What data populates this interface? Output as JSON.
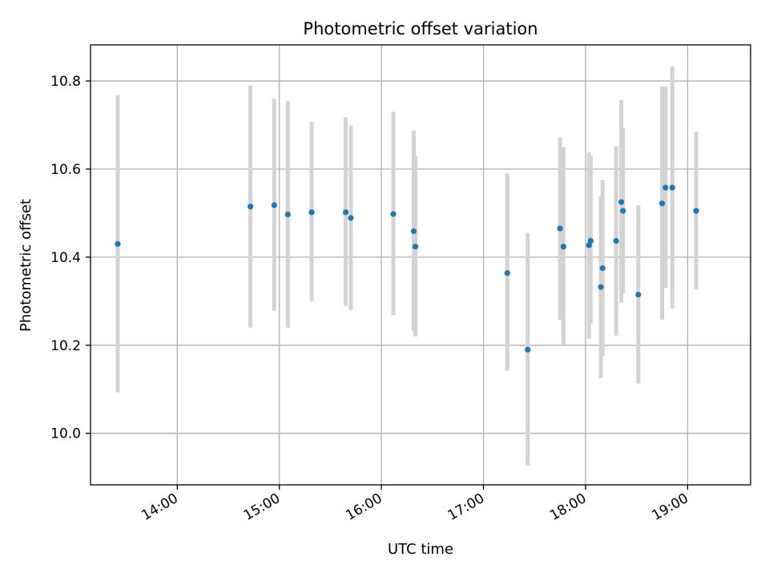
{
  "chart_data": {
    "type": "scatter",
    "title": "Photometric offset variation",
    "xlabel": "UTC time",
    "ylabel": "Photometric offset",
    "xlim": [
      "13:09",
      "19:37"
    ],
    "ylim": [
      9.883,
      10.882
    ],
    "xticks": [
      "14:00",
      "15:00",
      "16:00",
      "17:00",
      "18:00",
      "19:00"
    ],
    "yticks": [
      "10.0",
      "10.2",
      "10.4",
      "10.6",
      "10.8"
    ],
    "grid": true,
    "colors": {
      "marker": "#1f77b4",
      "errorbar": "#d3d3d3",
      "grid": "#b0b0b0"
    },
    "points": [
      {
        "t": "13:25",
        "y": 10.43,
        "lo": 10.093,
        "hi": 10.768
      },
      {
        "t": "14:43",
        "y": 10.515,
        "lo": 10.24,
        "hi": 10.79
      },
      {
        "t": "14:57",
        "y": 10.518,
        "lo": 10.278,
        "hi": 10.76
      },
      {
        "t": "15:05",
        "y": 10.497,
        "lo": 10.24,
        "hi": 10.755
      },
      {
        "t": "15:19",
        "y": 10.502,
        "lo": 10.3,
        "hi": 10.707
      },
      {
        "t": "15:39",
        "y": 10.502,
        "lo": 10.29,
        "hi": 10.718
      },
      {
        "t": "15:42",
        "y": 10.489,
        "lo": 10.28,
        "hi": 10.699
      },
      {
        "t": "16:07",
        "y": 10.498,
        "lo": 10.268,
        "hi": 10.73
      },
      {
        "t": "16:19",
        "y": 10.459,
        "lo": 10.232,
        "hi": 10.687
      },
      {
        "t": "16:20",
        "y": 10.424,
        "lo": 10.22,
        "hi": 10.63
      },
      {
        "t": "17:14",
        "y": 10.364,
        "lo": 10.142,
        "hi": 10.59
      },
      {
        "t": "17:26",
        "y": 10.19,
        "lo": 9.927,
        "hi": 10.455
      },
      {
        "t": "17:45",
        "y": 10.465,
        "lo": 10.258,
        "hi": 10.672
      },
      {
        "t": "17:47",
        "y": 10.424,
        "lo": 10.2,
        "hi": 10.65
      },
      {
        "t": "18:02",
        "y": 10.427,
        "lo": 10.215,
        "hi": 10.638
      },
      {
        "t": "18:03",
        "y": 10.437,
        "lo": 10.25,
        "hi": 10.63
      },
      {
        "t": "18:09",
        "y": 10.332,
        "lo": 10.125,
        "hi": 10.538
      },
      {
        "t": "18:10",
        "y": 10.375,
        "lo": 10.175,
        "hi": 10.575
      },
      {
        "t": "18:18",
        "y": 10.437,
        "lo": 10.222,
        "hi": 10.652
      },
      {
        "t": "18:21",
        "y": 10.525,
        "lo": 10.297,
        "hi": 10.757
      },
      {
        "t": "18:22",
        "y": 10.505,
        "lo": 10.318,
        "hi": 10.693
      },
      {
        "t": "18:31",
        "y": 10.315,
        "lo": 10.113,
        "hi": 10.518
      },
      {
        "t": "18:45",
        "y": 10.522,
        "lo": 10.258,
        "hi": 10.787
      },
      {
        "t": "18:47",
        "y": 10.558,
        "lo": 10.33,
        "hi": 10.787
      },
      {
        "t": "18:51",
        "y": 10.558,
        "lo": 10.283,
        "hi": 10.833
      },
      {
        "t": "19:05",
        "y": 10.505,
        "lo": 10.327,
        "hi": 10.685
      }
    ]
  }
}
